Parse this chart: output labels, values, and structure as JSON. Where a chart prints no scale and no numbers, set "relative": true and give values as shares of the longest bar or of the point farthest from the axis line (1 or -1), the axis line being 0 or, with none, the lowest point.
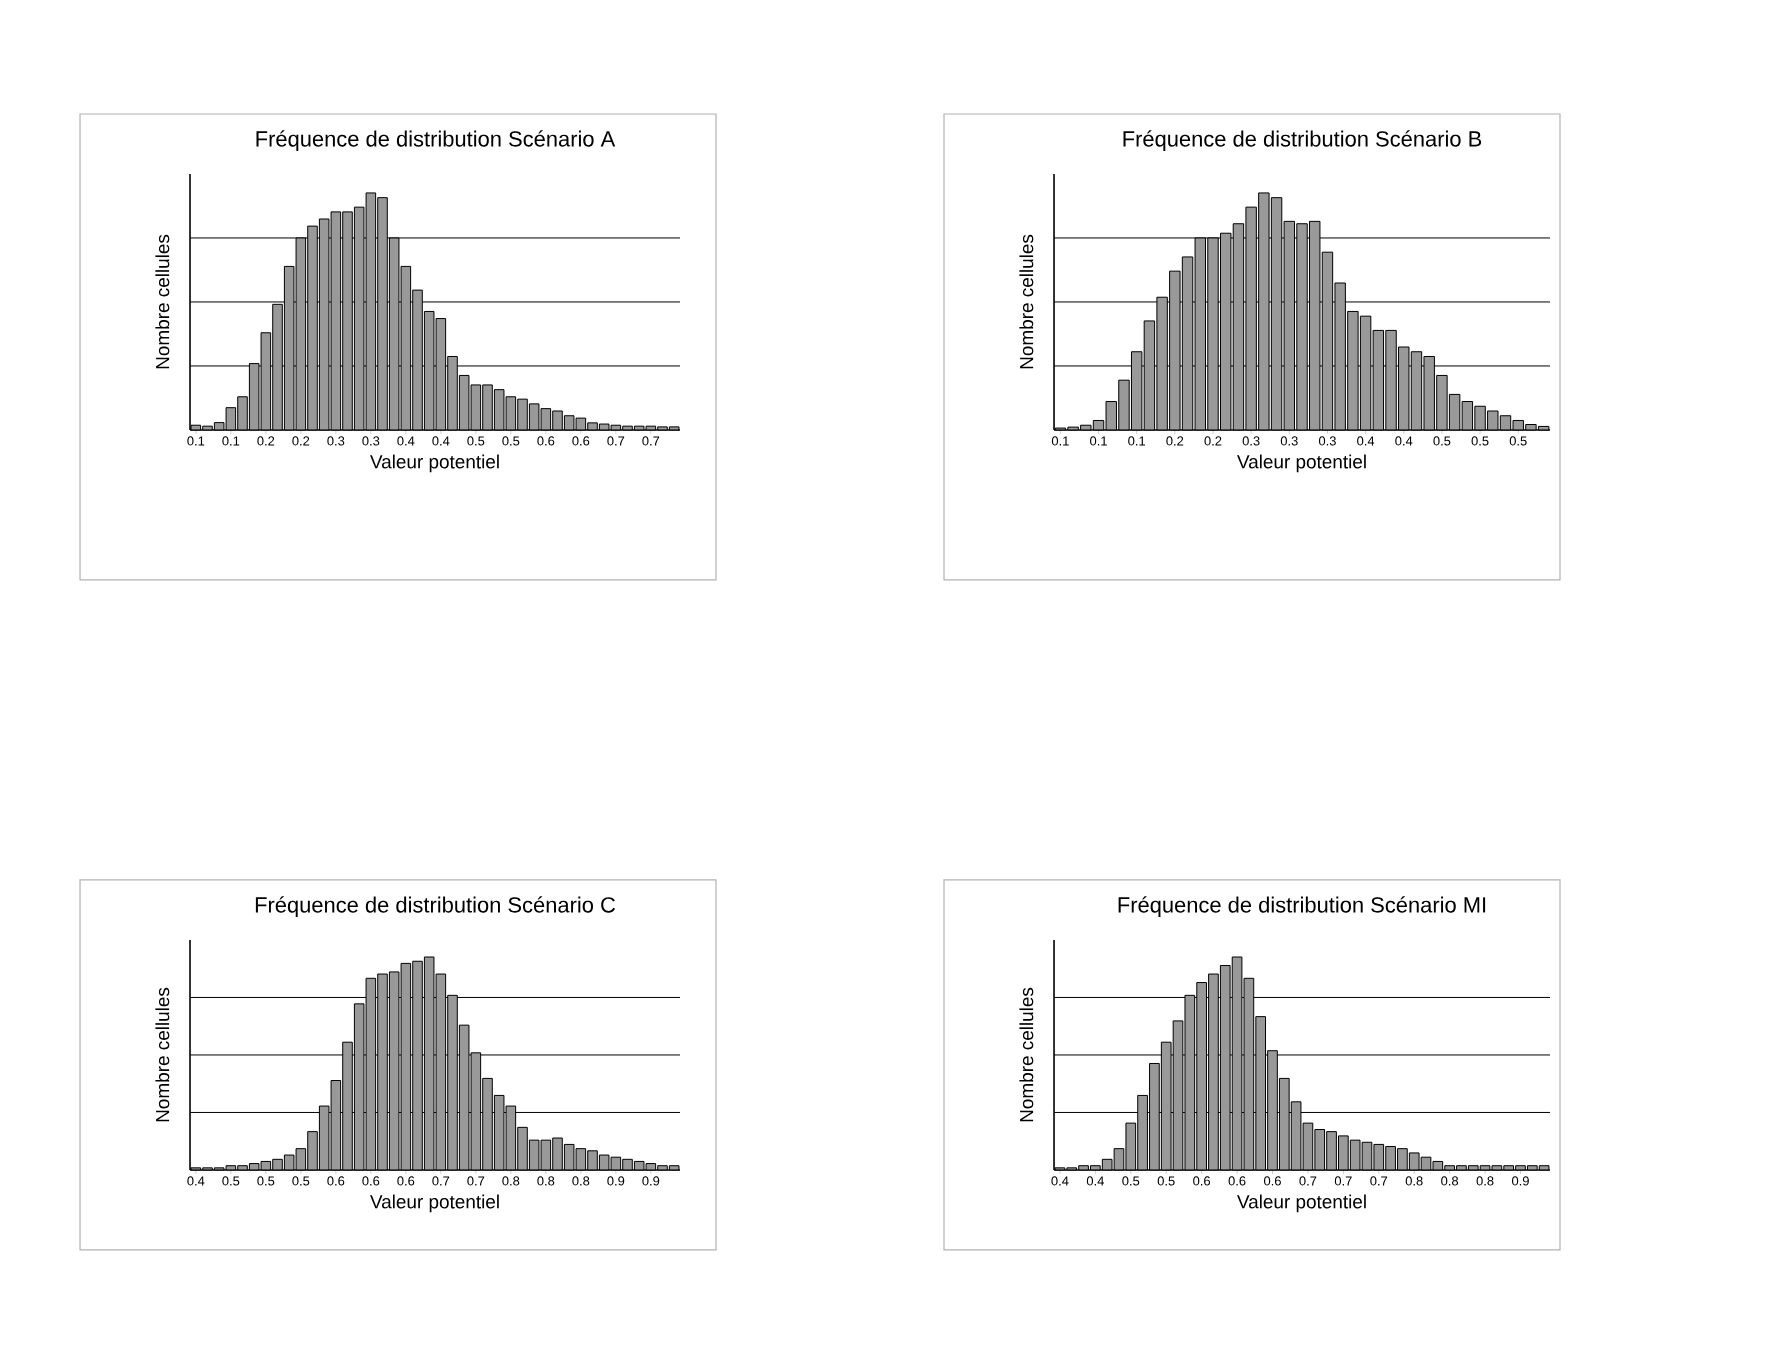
{
  "chart_data": [
    {
      "type": "bar",
      "title": "Fréquence de distribution Scénario A",
      "xlabel": "Valeur potentiel",
      "ylabel": "Nombre cellules",
      "relative": true,
      "grid": "y",
      "color": "#999999",
      "categories": [
        "0.1",
        null,
        null,
        "0.1",
        null,
        null,
        "0.2",
        null,
        null,
        "0.2",
        null,
        null,
        "0.3",
        null,
        null,
        "0.3",
        null,
        null,
        "0.4",
        null,
        null,
        "0.4",
        null,
        null,
        "0.5",
        null,
        null,
        "0.5",
        null,
        null,
        "0.6",
        null,
        null,
        "0.6",
        null,
        null,
        "0.7",
        null,
        null,
        "0.7",
        null,
        null
      ],
      "values": [
        0.02,
        0.016,
        0.031,
        0.094,
        0.14,
        0.28,
        0.41,
        0.53,
        0.69,
        0.81,
        0.86,
        0.89,
        0.92,
        0.92,
        0.94,
        1.0,
        0.98,
        0.81,
        0.69,
        0.59,
        0.5,
        0.47,
        0.31,
        0.23,
        0.19,
        0.19,
        0.17,
        0.14,
        0.13,
        0.11,
        0.09,
        0.08,
        0.06,
        0.05,
        0.03,
        0.025,
        0.02,
        0.016,
        0.016,
        0.016,
        0.013,
        0.013
      ]
    },
    {
      "type": "bar",
      "title": "Fréquence de distribution Scénario B",
      "xlabel": "Valeur potentiel",
      "ylabel": "Nombre cellules",
      "relative": true,
      "grid": "y",
      "color": "#999999",
      "categories": [
        "0.1",
        null,
        null,
        "0.1",
        null,
        null,
        "0.1",
        null,
        null,
        "0.2",
        null,
        null,
        "0.2",
        null,
        null,
        "0.3",
        null,
        null,
        "0.3",
        null,
        null,
        "0.3",
        null,
        null,
        "0.4",
        null,
        null,
        "0.4",
        null,
        null,
        "0.5",
        null,
        null,
        "0.5",
        null,
        null,
        "0.5",
        null,
        null
      ],
      "values": [
        0.008,
        0.012,
        0.02,
        0.04,
        0.12,
        0.21,
        0.33,
        0.46,
        0.56,
        0.67,
        0.73,
        0.81,
        0.81,
        0.83,
        0.87,
        0.94,
        1.0,
        0.98,
        0.88,
        0.87,
        0.88,
        0.75,
        0.62,
        0.5,
        0.48,
        0.42,
        0.42,
        0.35,
        0.33,
        0.31,
        0.23,
        0.15,
        0.12,
        0.1,
        0.08,
        0.06,
        0.04,
        0.023,
        0.015
      ]
    },
    {
      "type": "bar",
      "title": "Fréquence de distribution Scénario C",
      "xlabel": "Valeur potentiel",
      "ylabel": "Nombre cellules",
      "relative": true,
      "grid": "y",
      "color": "#999999",
      "categories": [
        "0.4",
        null,
        null,
        "0.5",
        null,
        null,
        "0.5",
        null,
        null,
        "0.5",
        null,
        null,
        "0.6",
        null,
        null,
        "0.6",
        null,
        null,
        "0.6",
        null,
        null,
        "0.7",
        null,
        null,
        "0.7",
        null,
        null,
        "0.8",
        null,
        null,
        "0.8",
        null,
        null,
        "0.8",
        null,
        null,
        "0.9",
        null,
        null,
        "0.9",
        null,
        null
      ],
      "values": [
        0.01,
        0.01,
        0.01,
        0.02,
        0.02,
        0.03,
        0.04,
        0.05,
        0.07,
        0.1,
        0.18,
        0.3,
        0.42,
        0.6,
        0.78,
        0.9,
        0.92,
        0.93,
        0.97,
        0.98,
        1.0,
        0.92,
        0.82,
        0.68,
        0.55,
        0.43,
        0.35,
        0.3,
        0.2,
        0.14,
        0.14,
        0.15,
        0.12,
        0.1,
        0.09,
        0.07,
        0.06,
        0.05,
        0.04,
        0.03,
        0.02,
        0.02
      ]
    },
    {
      "type": "bar",
      "title": "Fréquence de distribution Scénario MI",
      "xlabel": "Valeur potentiel",
      "ylabel": "Nombre cellules",
      "relative": true,
      "grid": "y",
      "color": "#999999",
      "categories": [
        "0.4",
        null,
        null,
        "0.4",
        null,
        null,
        "0.5",
        null,
        null,
        "0.5",
        null,
        null,
        "0.6",
        null,
        null,
        "0.6",
        null,
        null,
        "0.6",
        null,
        null,
        "0.7",
        null,
        null,
        "0.7",
        null,
        null,
        "0.7",
        null,
        null,
        "0.8",
        null,
        null,
        "0.8",
        null,
        null,
        "0.8",
        null,
        null,
        "0.9",
        null,
        null
      ],
      "values": [
        0.01,
        0.01,
        0.02,
        0.02,
        0.05,
        0.1,
        0.22,
        0.35,
        0.5,
        0.6,
        0.7,
        0.82,
        0.88,
        0.92,
        0.96,
        1.0,
        0.9,
        0.72,
        0.56,
        0.43,
        0.32,
        0.22,
        0.19,
        0.18,
        0.16,
        0.14,
        0.13,
        0.12,
        0.11,
        0.1,
        0.08,
        0.06,
        0.04,
        0.02,
        0.02,
        0.02,
        0.02,
        0.02,
        0.02,
        0.02,
        0.02,
        0.02
      ]
    }
  ]
}
